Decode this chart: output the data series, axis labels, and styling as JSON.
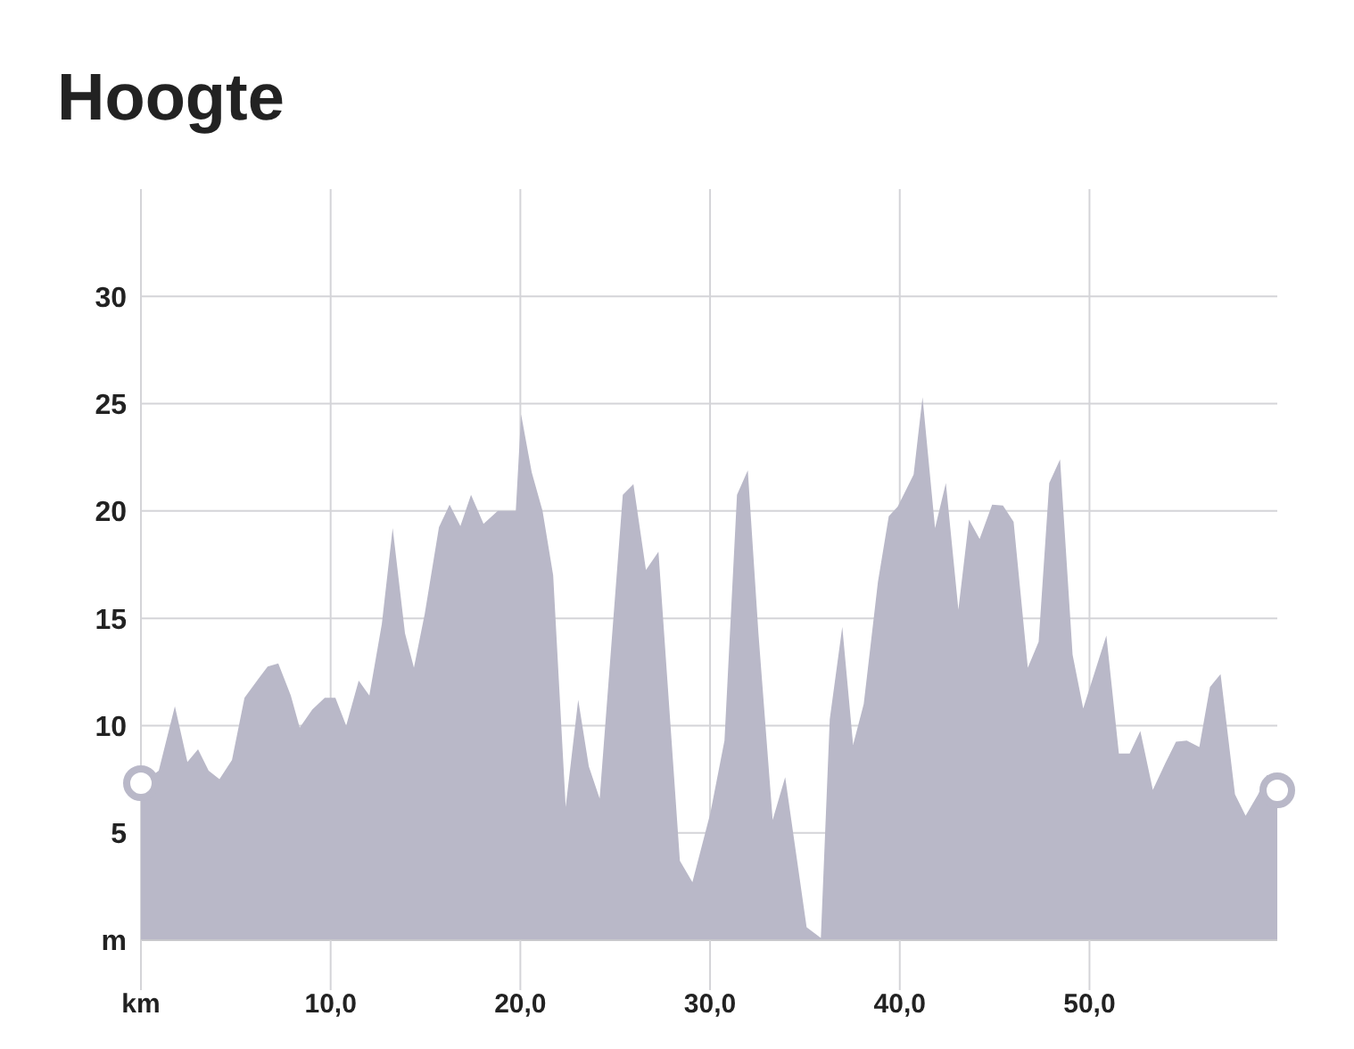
{
  "chart_data": {
    "type": "area",
    "title": "Hoogte",
    "x": [
      0,
      0.94,
      1.79,
      2.45,
      3.01,
      3.57,
      4.14,
      4.8,
      5.46,
      6.21,
      6.68,
      7.24,
      7.9,
      8.37,
      9.03,
      9.69,
      10.25,
      10.82,
      11.48,
      12.04,
      12.7,
      13.27,
      13.92,
      14.39,
      14.96,
      15.71,
      16.27,
      16.84,
      17.4,
      18.06,
      18.81,
      19.76,
      20.04,
      20.6,
      21.17,
      21.73,
      22.39,
      23.05,
      23.61,
      24.18,
      25.4,
      25.96,
      26.62,
      27.28,
      28.41,
      29.07,
      30.01,
      30.76,
      31.42,
      31.99,
      32.55,
      33.3,
      33.96,
      35.09,
      35.84,
      36.31,
      36.97,
      37.54,
      38.1,
      38.85,
      39.42,
      39.89,
      40.73,
      41.2,
      41.86,
      42.43,
      43.09,
      43.65,
      44.21,
      44.87,
      45.44,
      46,
      46.75,
      47.32,
      47.88,
      48.45,
      49.11,
      49.67,
      50.89,
      51.55,
      52.12,
      52.68,
      53.34,
      54,
      54.56,
      55.13,
      55.79,
      56.35,
      56.91,
      57.67,
      58.23,
      58.89,
      59.36,
      59.9
    ],
    "series": [
      {
        "color": "#b9b8c8",
        "values": [
          7.3,
          7.9,
          10.9,
          8.3,
          8.9,
          7.9,
          7.5,
          8.4,
          11.3,
          12.2,
          12.75,
          12.9,
          11.4,
          9.9,
          10.75,
          11.3,
          11.3,
          10,
          12.1,
          11.4,
          14.75,
          19.2,
          14.3,
          12.7,
          15.2,
          19.25,
          20.3,
          19.3,
          20.75,
          19.4,
          20,
          20,
          24.5,
          21.8,
          20,
          17,
          6.2,
          11.2,
          8.1,
          6.6,
          20.75,
          21.25,
          17.25,
          18.1,
          3.7,
          2.7,
          5.9,
          9.3,
          20.75,
          21.9,
          14.3,
          5.6,
          7.6,
          0.6,
          0.1,
          10.3,
          14.6,
          9.1,
          11,
          16.7,
          19.75,
          20.2,
          21.7,
          25.3,
          19.2,
          21.3,
          15.4,
          19.6,
          18.7,
          20.3,
          20.25,
          19.5,
          12.7,
          13.9,
          21.3,
          22.4,
          13.3,
          10.8,
          14.2,
          8.7,
          8.7,
          9.75,
          7,
          8.25,
          9.25,
          9.3,
          9,
          11.8,
          12.4,
          6.8,
          5.8,
          6.8,
          7.7,
          7
        ]
      }
    ],
    "xlim": [
      0,
      59.9
    ],
    "xticks": [
      {
        "value": 0,
        "label": "km"
      },
      {
        "value": 10,
        "label": "10,0"
      },
      {
        "value": 20,
        "label": "20,0"
      },
      {
        "value": 30,
        "label": "30,0"
      },
      {
        "value": 40,
        "label": "40,0"
      },
      {
        "value": 50,
        "label": "50,0"
      }
    ],
    "ylim": [
      0,
      35
    ],
    "yticks": [
      {
        "value": 0,
        "label": "m"
      },
      5,
      10,
      15,
      20,
      25,
      30
    ],
    "grid": true
  }
}
